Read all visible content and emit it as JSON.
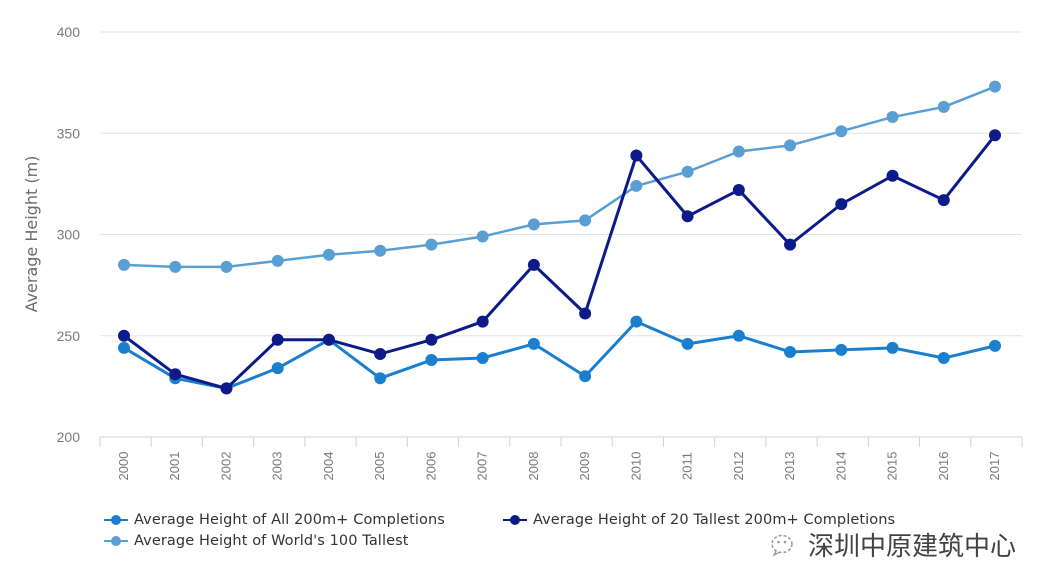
{
  "chart_data": {
    "type": "line",
    "title": "",
    "xlabel": "",
    "ylabel": "Average Height (m)",
    "ylim": [
      200,
      400
    ],
    "yticks": [
      200,
      250,
      300,
      350,
      400
    ],
    "grid": true,
    "legend_position": "bottom-left",
    "categories": [
      "2000",
      "2001",
      "2002",
      "2003",
      "2004",
      "2005",
      "2006",
      "2007",
      "2008",
      "2009",
      "2010",
      "2011",
      "2012",
      "2013",
      "2014",
      "2015",
      "2016",
      "2017"
    ],
    "series": [
      {
        "name": "Average Height of All 200m+ Completions",
        "color": "#1a7fcf",
        "values": [
          244,
          229,
          224,
          234,
          248,
          229,
          238,
          239,
          246,
          230,
          257,
          246,
          250,
          242,
          243,
          244,
          239,
          245
        ]
      },
      {
        "name": "Average Height of 20 Tallest 200m+ Completions",
        "color": "#0d1a8a",
        "values": [
          250,
          231,
          224,
          248,
          248,
          241,
          248,
          257,
          285,
          261,
          339,
          309,
          322,
          295,
          315,
          329,
          317,
          349
        ]
      },
      {
        "name": "Average Height of World's 100 Tallest",
        "color": "#5a9fd4",
        "values": [
          285,
          284,
          284,
          287,
          290,
          292,
          295,
          299,
          305,
          307,
          324,
          331,
          341,
          344,
          351,
          358,
          363,
          373
        ]
      }
    ]
  },
  "legend": {
    "items": [
      {
        "label": "Average Height of All 200m+ Completions",
        "color": "#1a7fcf"
      },
      {
        "label": "Average Height of 20 Tallest 200m+ Completions",
        "color": "#0d1a8a"
      },
      {
        "label": "Average Height of World's 100 Tallest",
        "color": "#5a9fd4"
      }
    ]
  },
  "watermark": {
    "text": "深圳中原建筑中心",
    "icon": "wechat-icon"
  }
}
